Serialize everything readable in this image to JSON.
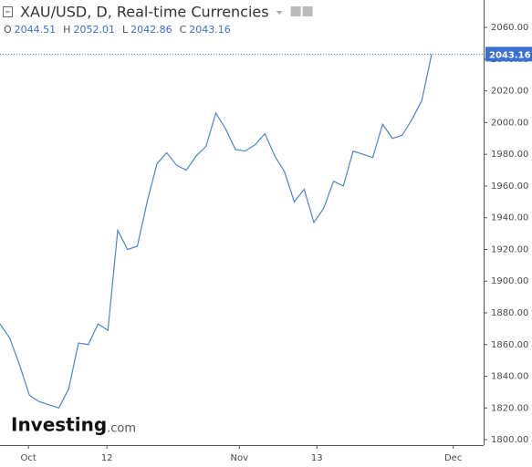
{
  "chart_data": {
    "type": "line",
    "title": "XAU/USD, D, Real-time Currencies",
    "ohlc": [
      {
        "label": "O",
        "value": 2044.51
      },
      {
        "label": "H",
        "value": 2052.01
      },
      {
        "label": "L",
        "value": 2042.86
      },
      {
        "label": "C",
        "value": 2043.16
      }
    ],
    "watermark_brand": "Investing",
    "watermark_suffix": ".com",
    "x": [
      0,
      1,
      2,
      3,
      4,
      5,
      6,
      7,
      8,
      9,
      10,
      11,
      12,
      13,
      14,
      15,
      16,
      17,
      18,
      19,
      20,
      21,
      22,
      23,
      24,
      25,
      26,
      27,
      28,
      29,
      30,
      31,
      32,
      33,
      34,
      35,
      36,
      37,
      38,
      39,
      40,
      41,
      42,
      43,
      44
    ],
    "series": [
      {
        "name": "XAU/USD",
        "color": "#4a84d4",
        "values": [
          1873,
          1864,
          1847,
          1828,
          1824,
          1822,
          1820,
          1832,
          1861,
          1860,
          1873,
          1869,
          1932,
          1920,
          1922,
          1950,
          1974,
          1981,
          1973,
          1970,
          1979,
          1985,
          2006,
          1996,
          1983,
          1982,
          1986,
          1993,
          1979,
          1969,
          1950,
          1958,
          1937,
          1946,
          1963,
          1960,
          1982,
          1980,
          1978,
          1999,
          1990,
          1992,
          2002,
          2014,
          2043.16
        ]
      }
    ],
    "xlim": [
      0,
      49.3
    ],
    "xticks": [
      {
        "value": 2.9,
        "label": "Oct"
      },
      {
        "value": 10.9,
        "label": "12"
      },
      {
        "value": 24.4,
        "label": "Nov"
      },
      {
        "value": 32.3,
        "label": "13"
      },
      {
        "value": 46.2,
        "label": "Dec"
      }
    ],
    "ylim": [
      1796.6,
      2077.3
    ],
    "yticks": [
      {
        "value": 1800,
        "label": "1800.00"
      },
      {
        "value": 1820,
        "label": "1820.00"
      },
      {
        "value": 1840,
        "label": "1840.00"
      },
      {
        "value": 1860,
        "label": "1860.00"
      },
      {
        "value": 1880,
        "label": "1880.00"
      },
      {
        "value": 1900,
        "label": "1900.00"
      },
      {
        "value": 1920,
        "label": "1920.00"
      },
      {
        "value": 1940,
        "label": "1940.00"
      },
      {
        "value": 1960,
        "label": "1960.00"
      },
      {
        "value": 1980,
        "label": "1980.00"
      },
      {
        "value": 2000,
        "label": "2000.00"
      },
      {
        "value": 2020,
        "label": "2020.00"
      },
      {
        "value": 2040,
        "label": "2040.00"
      },
      {
        "value": 2060,
        "label": "2060.00"
      }
    ]
  }
}
